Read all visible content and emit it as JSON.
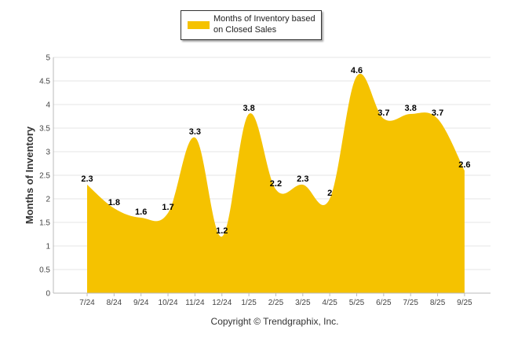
{
  "legend": {
    "label": "Months of Inventory based on Closed Sales"
  },
  "footer": {
    "copyright": "Copyright © Trendgraphix, Inc."
  },
  "colors": {
    "fill": "#f5c200",
    "grid": "#e5e5e5",
    "axis": "#bbbbbb"
  },
  "chart_data": {
    "type": "area",
    "title": "",
    "xlabel": "",
    "ylabel": "Months of Inventory",
    "ylim": [
      0,
      5
    ],
    "yticks": [
      "0",
      "0.5",
      "1",
      "1.5",
      "2",
      "2.5",
      "3",
      "3.5",
      "4",
      "4.5",
      "5"
    ],
    "ytick_values": [
      0,
      0.5,
      1,
      1.5,
      2,
      2.5,
      3,
      3.5,
      4,
      4.5,
      5
    ],
    "grid": true,
    "legend_position": "top-center",
    "categories": [
      "7/24",
      "8/24",
      "9/24",
      "10/24",
      "11/24",
      "12/24",
      "1/25",
      "2/25",
      "3/25",
      "4/25",
      "5/25",
      "6/25",
      "7/25",
      "8/25",
      "9/25"
    ],
    "series": [
      {
        "name": "Months of Inventory based on Closed Sales",
        "values": [
          2.3,
          1.8,
          1.6,
          1.7,
          3.3,
          1.2,
          3.8,
          2.2,
          2.3,
          2,
          4.6,
          3.7,
          3.8,
          3.7,
          2.6
        ],
        "labels": [
          "2.3",
          "1.8",
          "1.6",
          "1.7",
          "3.3",
          "1.2",
          "3.8",
          "2.2",
          "2.3",
          "2",
          "4.6",
          "3.7",
          "3.8",
          "3.7",
          "2.6"
        ]
      }
    ]
  }
}
